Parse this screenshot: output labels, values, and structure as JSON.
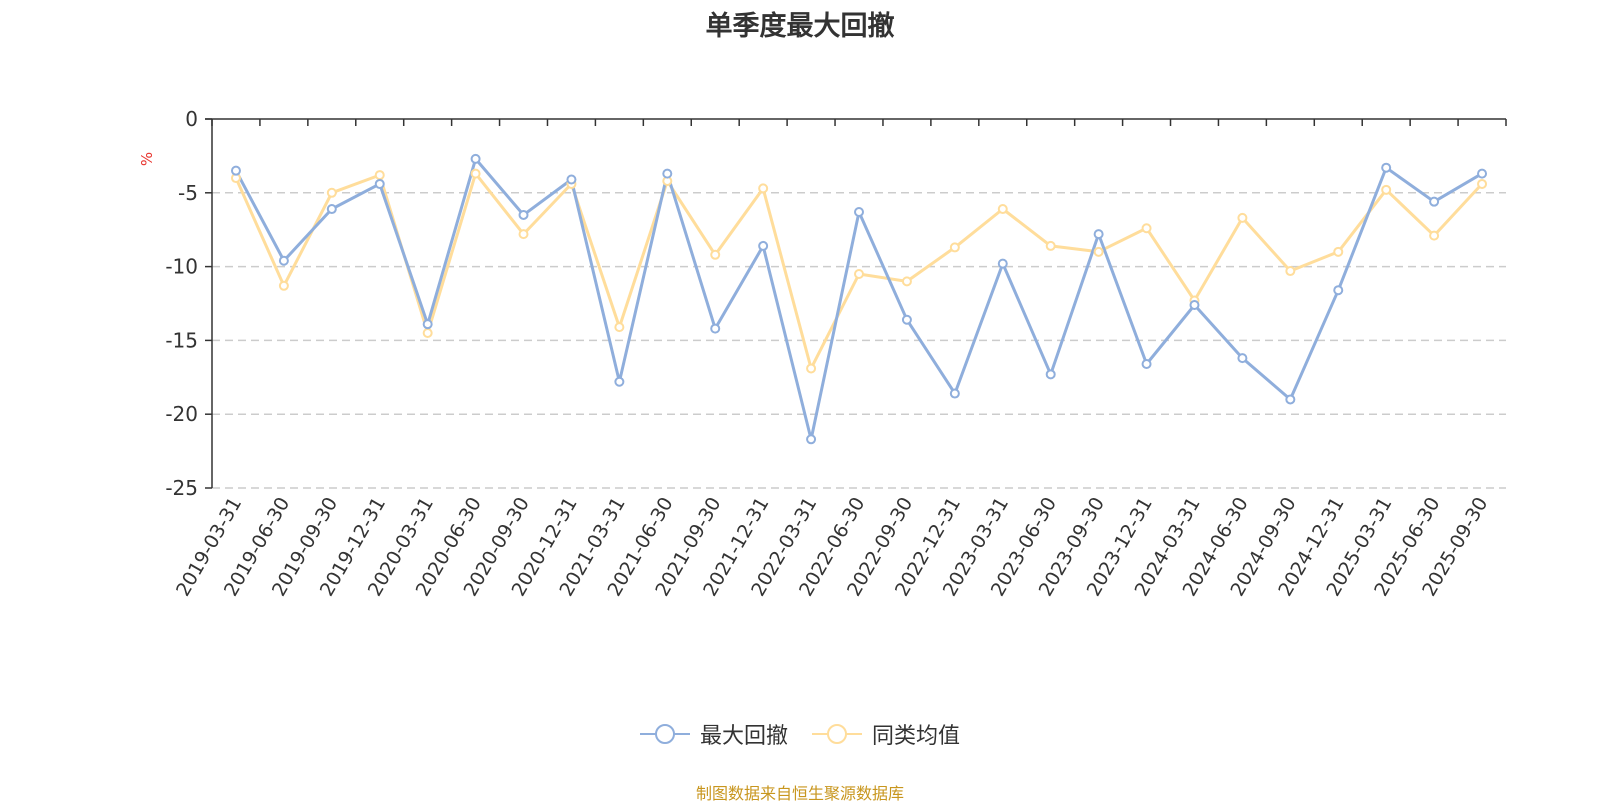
{
  "colors": {
    "series_1": "#8FAEDC",
    "series_2": "#FFDD9B",
    "unit": "#E8342E",
    "source": "#C8961E",
    "grid": "#CCCCCC",
    "axis": "#333333"
  },
  "legend": [
    {
      "label": "最大回撤",
      "icon": "circle-line-icon"
    },
    {
      "label": "同类均值",
      "icon": "circle-line-icon"
    }
  ],
  "source": "制图数据来自恒生聚源数据库",
  "chart_data": {
    "type": "line",
    "title": "单季度最大回撤",
    "ylabel": "%",
    "ylim": [
      -25,
      0
    ],
    "yticks": [
      0,
      -5,
      -10,
      -15,
      -20,
      -25
    ],
    "grid": true,
    "legend_position": "bottom",
    "categories": [
      "2019-03-31",
      "2019-06-30",
      "2019-09-30",
      "2019-12-31",
      "2020-03-31",
      "2020-06-30",
      "2020-09-30",
      "2020-12-31",
      "2021-03-31",
      "2021-06-30",
      "2021-09-30",
      "2021-12-31",
      "2022-03-31",
      "2022-06-30",
      "2022-09-30",
      "2022-12-31",
      "2023-03-31",
      "2023-06-30",
      "2023-09-30",
      "2023-12-31",
      "2024-03-31",
      "2024-06-30",
      "2024-09-30",
      "2024-12-31",
      "2025-03-31",
      "2025-06-30",
      "2025-09-30"
    ],
    "series": [
      {
        "name": "最大回撤",
        "values": [
          -3.5,
          -9.6,
          -6.1,
          -4.4,
          -13.9,
          -2.7,
          -6.5,
          -4.1,
          -17.8,
          -3.7,
          -14.2,
          -8.6,
          -21.7,
          -6.3,
          -13.6,
          -18.6,
          -9.8,
          -17.3,
          -7.8,
          -16.6,
          -12.6,
          -16.2,
          -19.0,
          -11.6,
          -3.3,
          -5.6,
          -3.7
        ]
      },
      {
        "name": "同类均值",
        "values": [
          -4.0,
          -11.3,
          -5.0,
          -3.8,
          -14.5,
          -3.7,
          -7.8,
          -4.4,
          -14.1,
          -4.2,
          -9.2,
          -4.7,
          -16.9,
          -10.5,
          -11.0,
          -8.7,
          -6.1,
          -8.6,
          -9.0,
          -7.4,
          -12.3,
          -6.7,
          -10.3,
          -9.0,
          -4.8,
          -7.9,
          -4.4
        ]
      }
    ]
  }
}
